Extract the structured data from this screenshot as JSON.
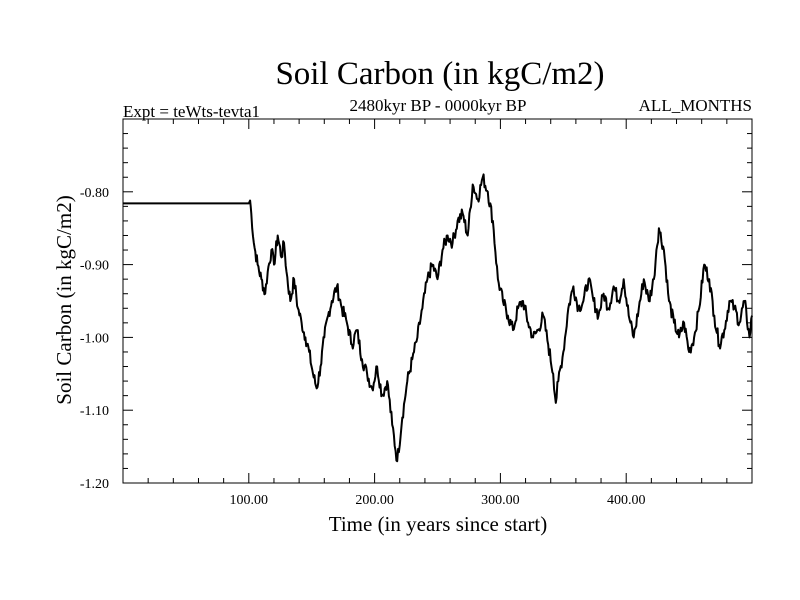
{
  "chart_data": {
    "type": "line",
    "title": "Soil Carbon (in kgC/m2)",
    "subtitle_left": "Expt = teWts-tevta1",
    "subtitle_center": "2480kyr BP - 0000kyr BP",
    "subtitle_right": "ALL_MONTHS",
    "xlabel": "Time (in years since start)",
    "ylabel": "Soil Carbon (in kgC/m2)",
    "xlim": [
      0,
      500
    ],
    "ylim": [
      -1.2,
      -0.7
    ],
    "xticks": [
      100,
      200,
      300,
      400
    ],
    "xtick_labels": [
      "100.00",
      "200.00",
      "300.00",
      "400.00"
    ],
    "yticks": [
      -1.2,
      -1.1,
      -1.0,
      -0.9,
      -0.8
    ],
    "ytick_labels": [
      "-1.20",
      "-1.10",
      "-1.00",
      "-0.90",
      "-0.80"
    ],
    "grid": false,
    "series": [
      {
        "name": "Soil Carbon",
        "x": [
          0,
          100,
          101,
          102,
          104,
          107,
          110,
          113,
          115,
          118,
          120,
          123,
          126,
          128,
          130,
          133,
          136,
          139,
          142,
          145,
          148,
          151,
          154,
          157,
          160,
          163,
          166,
          170,
          174,
          178,
          182,
          186,
          190,
          194,
          198,
          202,
          206,
          210,
          214,
          218,
          222,
          226,
          230,
          234,
          238,
          242,
          246,
          250,
          254,
          258,
          262,
          266,
          270,
          274,
          278,
          282,
          286,
          290,
          294,
          298,
          302,
          306,
          310,
          314,
          318,
          322,
          326,
          330,
          334,
          338,
          342,
          344,
          346,
          350,
          354,
          358,
          362,
          366,
          370,
          374,
          378,
          382,
          386,
          390,
          394,
          398,
          402,
          406,
          410,
          414,
          418,
          422,
          424,
          426,
          430,
          434,
          438,
          442,
          446,
          450,
          454,
          458,
          462,
          466,
          470,
          474,
          478,
          482,
          486,
          490,
          494,
          498,
          500
        ],
        "values": [
          -0.816,
          -0.816,
          -0.812,
          -0.83,
          -0.87,
          -0.9,
          -0.92,
          -0.94,
          -0.91,
          -0.88,
          -0.9,
          -0.86,
          -0.89,
          -0.87,
          -0.91,
          -0.95,
          -0.92,
          -0.96,
          -0.98,
          -1.0,
          -1.02,
          -1.05,
          -1.07,
          -1.04,
          -1.0,
          -0.97,
          -0.95,
          -0.93,
          -0.96,
          -0.98,
          -1.01,
          -0.99,
          -1.03,
          -1.05,
          -1.07,
          -1.04,
          -1.08,
          -1.06,
          -1.12,
          -1.17,
          -1.11,
          -1.06,
          -1.03,
          -1.0,
          -0.96,
          -0.92,
          -0.9,
          -0.92,
          -0.88,
          -0.86,
          -0.87,
          -0.84,
          -0.83,
          -0.86,
          -0.79,
          -0.81,
          -0.78,
          -0.8,
          -0.84,
          -0.92,
          -0.95,
          -0.97,
          -0.99,
          -0.96,
          -0.95,
          -0.98,
          -1.0,
          -0.99,
          -0.97,
          -1.01,
          -1.05,
          -1.09,
          -1.06,
          -1.02,
          -0.96,
          -0.93,
          -0.96,
          -0.95,
          -0.92,
          -0.95,
          -0.97,
          -0.94,
          -0.96,
          -0.93,
          -0.95,
          -0.92,
          -0.97,
          -1.0,
          -0.96,
          -0.92,
          -0.95,
          -0.92,
          -0.88,
          -0.85,
          -0.88,
          -0.95,
          -0.98,
          -1.0,
          -0.98,
          -1.02,
          -1.0,
          -0.96,
          -0.9,
          -0.92,
          -0.97,
          -1.01,
          -0.99,
          -0.95,
          -0.96,
          -0.98,
          -0.95,
          -1.0,
          -0.97
        ]
      }
    ]
  }
}
